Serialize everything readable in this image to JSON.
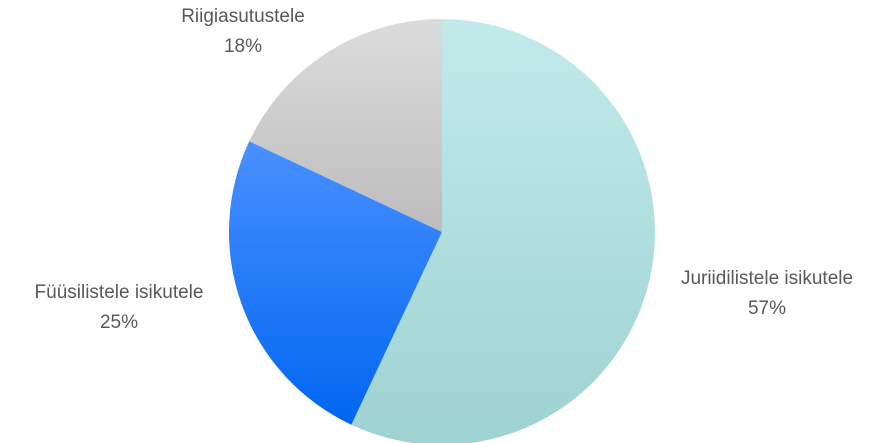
{
  "chart_data": {
    "type": "pie",
    "title": "",
    "slices": [
      {
        "label": "Juriidilistele isikutele",
        "value": 57,
        "value_label": "57%",
        "color_top": "#c2eaeb",
        "color_bottom": "#9fd2d2"
      },
      {
        "label": "Füüsilistele isikutele",
        "value": 25,
        "value_label": "25%",
        "color_top": "#4a90ff",
        "color_bottom": "#0066f0"
      },
      {
        "label": "Riigiasutustele",
        "value": 18,
        "value_label": "18%",
        "color_top": "#dcdcdc",
        "color_bottom": "#bcbcbc"
      }
    ],
    "start_angle_deg": 0,
    "direction": "clockwise",
    "label_color": "#595959",
    "legend": "none"
  }
}
